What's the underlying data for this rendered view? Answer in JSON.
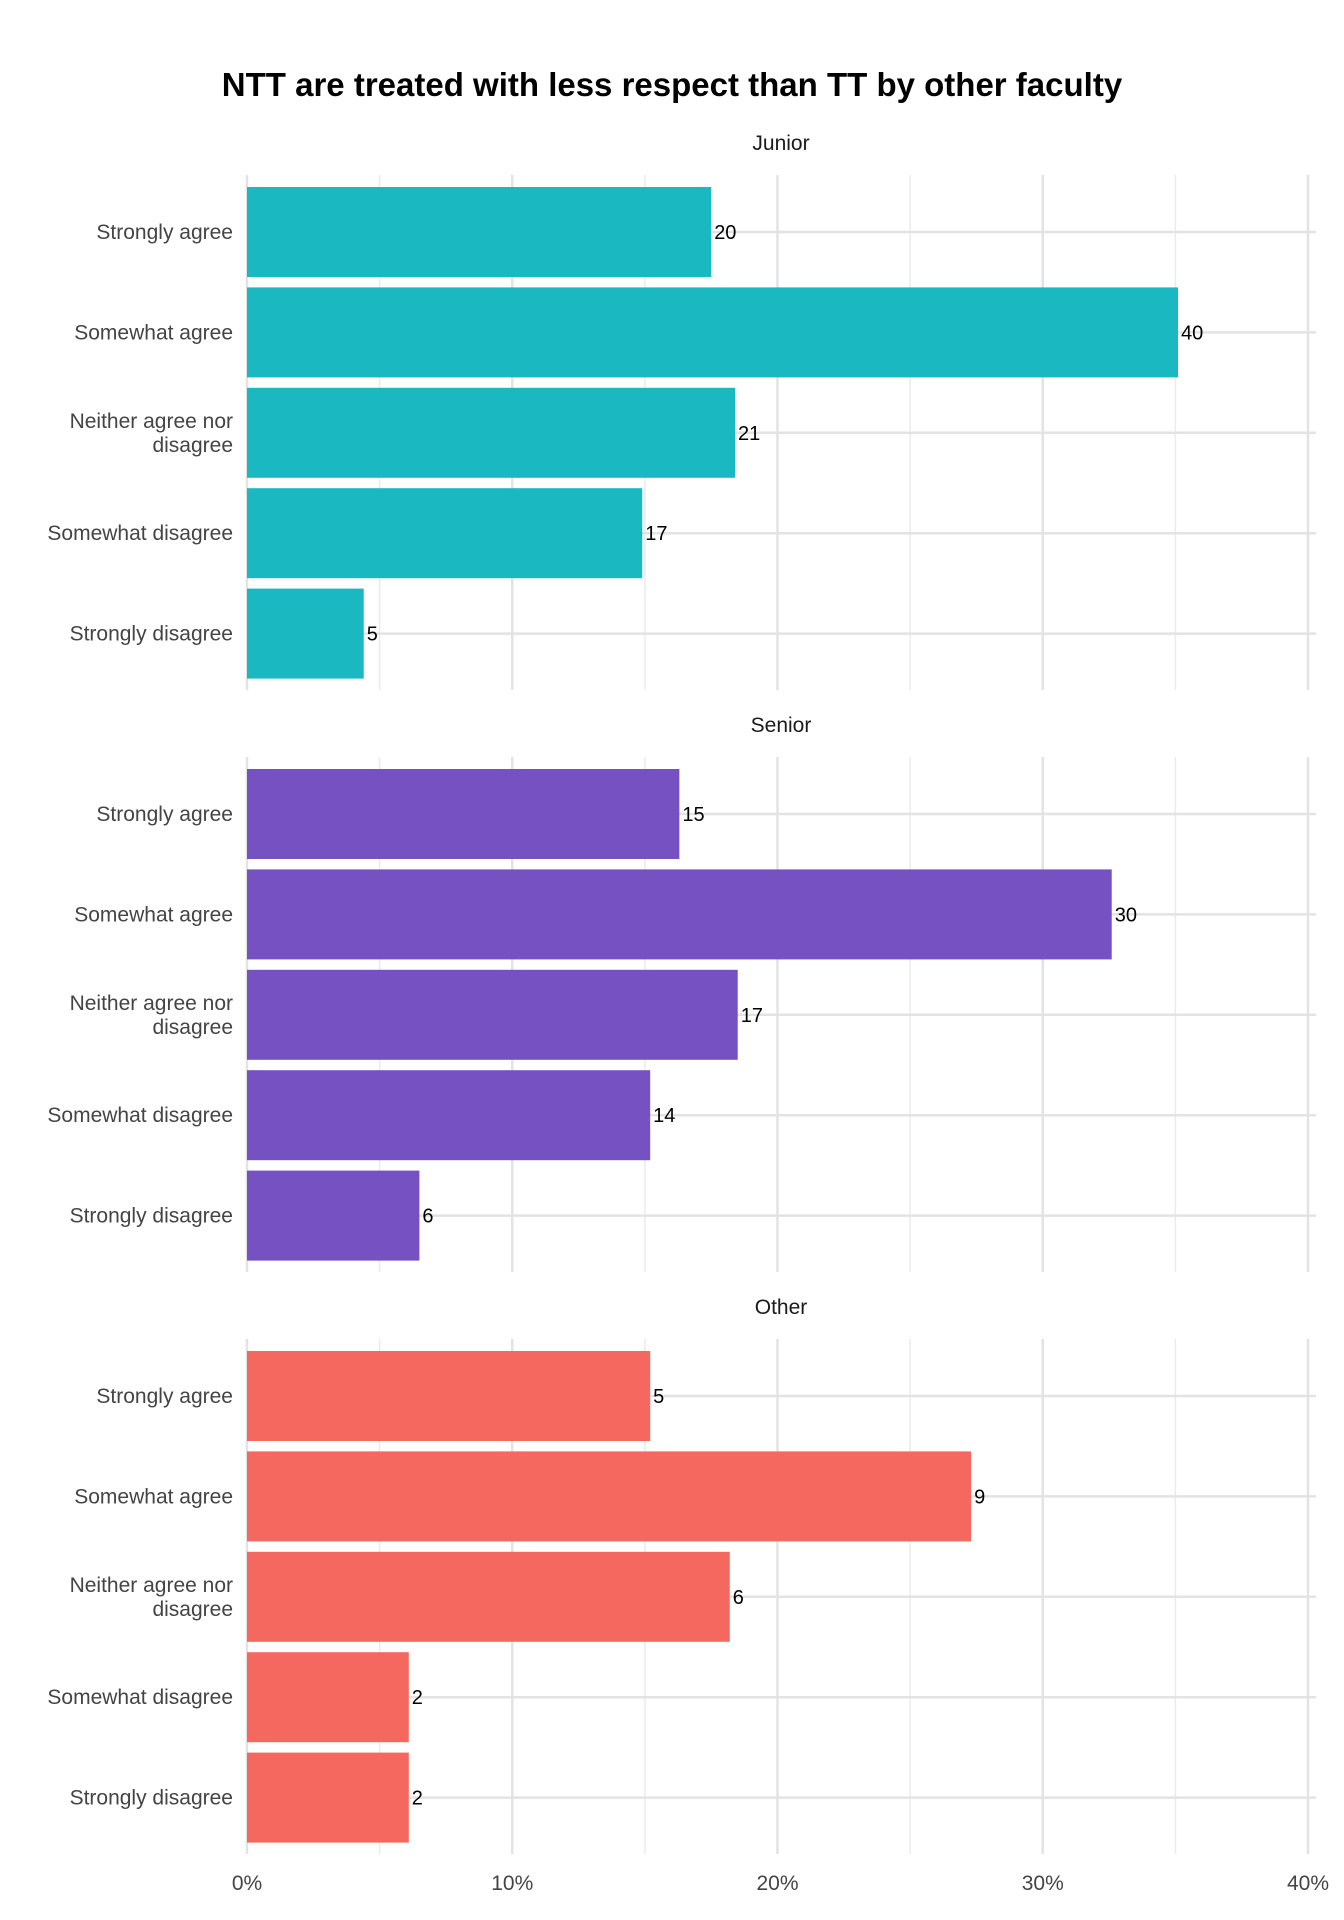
{
  "chart_data": {
    "type": "bar",
    "orientation": "horizontal",
    "title": "NTT are treated with less respect than TT by other faculty",
    "xlabel": "",
    "ylabel": "",
    "x_ticks": [
      "0%",
      "10%",
      "20%",
      "30%",
      "40%"
    ],
    "xlim": [
      0,
      0.4
    ],
    "grid": true,
    "legend": "none",
    "categories": [
      "Strongly agree",
      "Somewhat agree",
      "Neither agree nor disagree",
      "Somewhat disagree",
      "Strongly disagree"
    ],
    "facets": [
      {
        "name": "Junior",
        "color": "#1AB8C1",
        "values": [
          0.175,
          0.351,
          0.184,
          0.149,
          0.044
        ],
        "labels": [
          "20",
          "40",
          "21",
          "17",
          "5"
        ]
      },
      {
        "name": "Senior",
        "color": "#7551C1",
        "values": [
          0.163,
          0.326,
          0.185,
          0.152,
          0.065
        ],
        "labels": [
          "15",
          "30",
          "17",
          "14",
          "6"
        ]
      },
      {
        "name": "Other",
        "color": "#F4685F",
        "values": [
          0.152,
          0.273,
          0.182,
          0.061,
          0.061
        ],
        "labels": [
          "5",
          "9",
          "6",
          "2",
          "2"
        ]
      }
    ]
  }
}
